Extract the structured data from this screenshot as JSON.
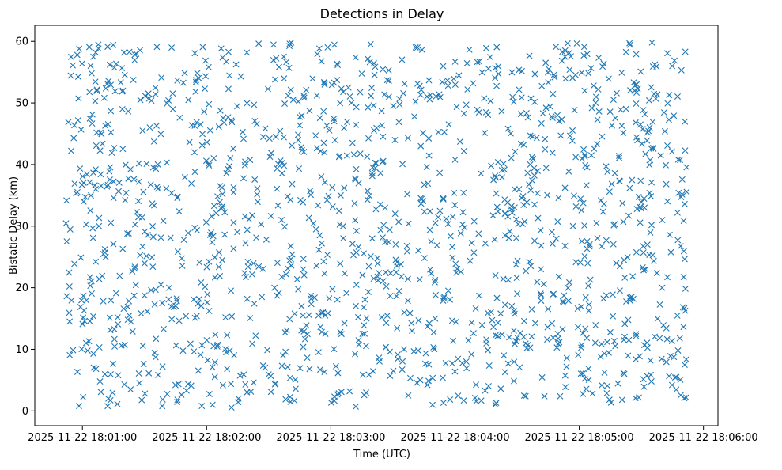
{
  "chart_data": {
    "type": "scatter",
    "title": "Detections in Delay",
    "xlabel": "Time (UTC)",
    "ylabel": "Bistatic Delay (km)",
    "marker": "x",
    "color": "#1f77b4",
    "grid": false,
    "legend": "none",
    "xlim": [
      "2025-11-22 18:00:37",
      "2025-11-22 18:06:07"
    ],
    "ylim": [
      -2.4,
      62.6
    ],
    "x_ticks": [
      "2025-11-22 18:01:00",
      "2025-11-22 18:02:00",
      "2025-11-22 18:03:00",
      "2025-11-22 18:04:00",
      "2025-11-22 18:05:00",
      "2025-11-22 18:06:00"
    ],
    "y_ticks": [
      0,
      10,
      20,
      30,
      40,
      50,
      60
    ],
    "x_range": [
      "2025-11-22 18:00:52",
      "2025-11-22 18:05:52"
    ],
    "y_range": [
      0.5,
      59.9
    ],
    "n_points": 1500,
    "data_note": "Dense uniform scatter of detections; individual points are randomly distributed across the time and delay ranges."
  }
}
